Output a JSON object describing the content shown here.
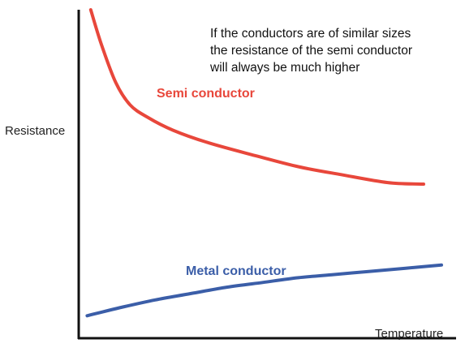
{
  "chart_data": {
    "type": "line",
    "title": "",
    "xlabel": "Temperature",
    "ylabel": "Resistance",
    "xlim": [
      0,
      10
    ],
    "ylim": [
      0,
      10
    ],
    "grid": false,
    "legend": "none",
    "series": [
      {
        "name": "Semi conductor",
        "color": "#e8473b",
        "x": [
          0.2,
          0.5,
          0.9,
          1.3,
          1.8,
          2.5,
          3.5,
          4.8,
          6.0,
          7.2,
          8.5,
          9.5
        ],
        "y": [
          10.0,
          8.9,
          7.7,
          7.0,
          6.6,
          6.2,
          5.8,
          5.4,
          5.05,
          4.8,
          4.55,
          4.5
        ]
      },
      {
        "name": "Metal conductor",
        "color": "#3b5ea8",
        "x": [
          0.1,
          1.0,
          2.0,
          3.0,
          4.0,
          5.0,
          6.0,
          7.0,
          8.0,
          9.0,
          10.0
        ],
        "y": [
          0.35,
          0.6,
          0.85,
          1.05,
          1.25,
          1.4,
          1.55,
          1.65,
          1.75,
          1.85,
          1.95
        ]
      }
    ],
    "annotations": [
      "If the conductors are of similar sizes",
      "the resistance of the semi conductor",
      "will always be much higher"
    ]
  }
}
